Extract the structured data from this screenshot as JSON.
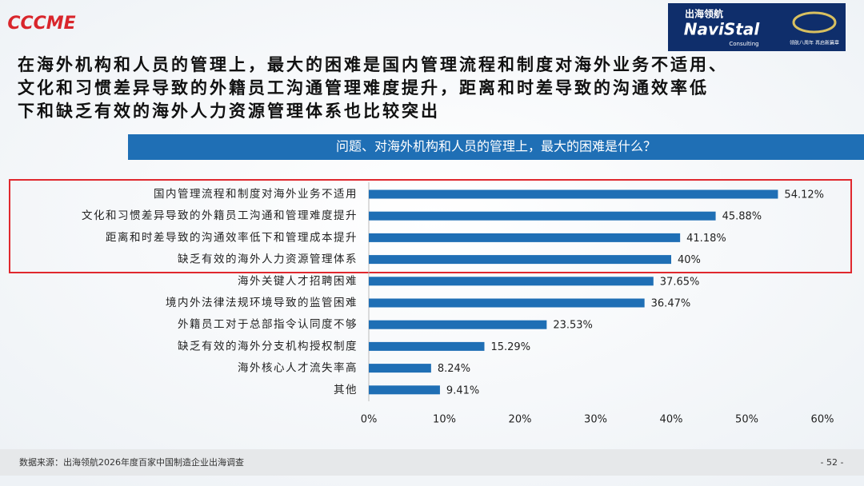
{
  "header": {
    "logo_left": "CCCME",
    "logo_right_cn": "出海领航",
    "logo_right": "NaviStal",
    "logo_right_sub": "Consulting",
    "logo_right_tag": "领航八周年 再启新篇章"
  },
  "headline": [
    "在海外机构和人员的管理上，最大的困难是国内管理流程和制度对海外业务不适用、",
    "文化和习惯差异导致的外籍员工沟通管理难度提升，距离和时差导致的沟通效率低",
    "下和缺乏有效的海外人力资源管理体系也比较突出"
  ],
  "chart_data": {
    "type": "bar",
    "orientation": "horizontal",
    "title": "问题、对海外机构和人员的管理上，最大的困难是什么？",
    "categories": [
      "国内管理流程和制度对海外业务不适用",
      "文化和习惯差异导致的外籍员工沟通和管理难度提升",
      "距离和时差导致的沟通效率低下和管理成本提升",
      "缺乏有效的海外人力资源管理体系",
      "海外关键人才招聘困难",
      "境内外法律法规环境导致的监管困难",
      "外籍员工对于总部指令认同度不够",
      "缺乏有效的海外分支机构授权制度",
      "海外核心人才流失率高",
      "其他"
    ],
    "values": [
      54.12,
      45.88,
      41.18,
      40,
      37.65,
      36.47,
      23.53,
      15.29,
      8.24,
      9.41
    ],
    "value_labels": [
      "54.12%",
      "45.88%",
      "41.18%",
      "40%",
      "37.65%",
      "36.47%",
      "23.53%",
      "15.29%",
      "8.24%",
      "9.41%"
    ],
    "color": "#1f6fb5",
    "xlim": [
      0,
      60
    ],
    "xticks": [
      {
        "value": 0,
        "label": "0%"
      },
      {
        "value": 10,
        "label": "10%"
      },
      {
        "value": 20,
        "label": "20%"
      },
      {
        "value": 30,
        "label": "30%"
      },
      {
        "value": 40,
        "label": "40%"
      },
      {
        "value": 50,
        "label": "50%"
      },
      {
        "value": 60,
        "label": "60%"
      }
    ]
  },
  "footer": {
    "source": "数据来源：出海领航2026年度百家中国制造企业出海调查",
    "page": "- 52 -"
  }
}
